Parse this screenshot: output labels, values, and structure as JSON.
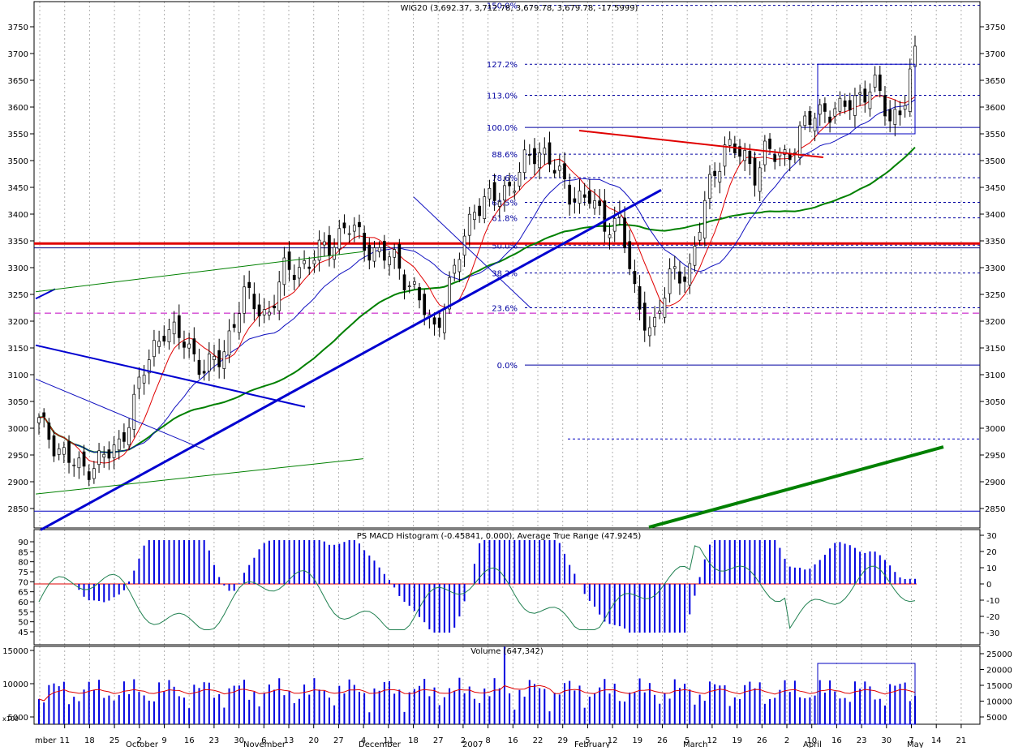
{
  "chart_data": [
    {
      "type": "candlestick",
      "title": "WIG20 (3,692.37, 3,712.78, 3,679.78, 3,679.78, -17.5999)",
      "y_ticks": [
        3750,
        3700,
        3650,
        3600,
        3550,
        3500,
        3450,
        3400,
        3350,
        3300,
        3250,
        3200,
        3150,
        3100,
        3050,
        3000,
        2950,
        2900,
        2850
      ],
      "ylim": [
        2820,
        3790
      ],
      "x_date_labels": [
        "mber",
        "11",
        "18",
        "25",
        "2",
        "9",
        "16",
        "23",
        "30",
        "6",
        "13",
        "20",
        "27",
        "4",
        "11",
        "18",
        "27",
        "2",
        "8",
        "16",
        "22",
        "29",
        "5",
        "12",
        "19",
        "26",
        "5",
        "12",
        "19",
        "26",
        "2",
        "10",
        "16",
        "23",
        "30",
        "7",
        "14",
        "21"
      ],
      "month_labels": [
        "October",
        "November",
        "December",
        "2007",
        "February",
        "March",
        "April",
        "May"
      ],
      "fibonacci_levels": [
        {
          "label": "150.0%",
          "value": 3790
        },
        {
          "label": "127.2%",
          "value": 3680
        },
        {
          "label": "113.0%",
          "value": 3622
        },
        {
          "label": "100.0%",
          "value": 3562
        },
        {
          "label": "88.6%",
          "value": 3512
        },
        {
          "label": "78.6%",
          "value": 3468
        },
        {
          "label": "68.5%",
          "value": 3422
        },
        {
          "label": "61.8%",
          "value": 3393
        },
        {
          "label": "50.0%",
          "value": 3342
        },
        {
          "label": "38.2%",
          "value": 3290
        },
        {
          "label": "23.6%",
          "value": 3225
        },
        {
          "label": "0.0%",
          "value": 3118
        }
      ],
      "horizontal_lines": [
        {
          "name": "resistance-3345",
          "value": 3345,
          "color": "#e00000"
        },
        {
          "name": "level-3337",
          "value": 3337,
          "color": "#000080"
        },
        {
          "name": "level-3215",
          "value": 3215,
          "color": "#c000c0"
        },
        {
          "name": "level-2980",
          "value": 2980,
          "color": "#0000c0"
        },
        {
          "name": "level-2845",
          "value": 2845,
          "color": "#0000c0"
        }
      ],
      "colors": {
        "up": "#ffffff",
        "down": "#000000",
        "ma_short": "#e00000",
        "ma_mid": "#1010c0",
        "ma_long": "#008000",
        "trend": "#0000d0"
      }
    },
    {
      "type": "histogram+line",
      "title": "PS MACD Histogram (-0.45841, 0.000), Average True Range (47.9245)",
      "left_ticks": [
        90,
        85,
        80,
        75,
        70,
        65,
        60,
        55,
        50,
        45
      ],
      "right_ticks": [
        30,
        20,
        10,
        0,
        -10,
        -20,
        -30
      ],
      "colors": {
        "histogram": "#0000e0",
        "zero": "#e00000",
        "atr": "#208050"
      }
    },
    {
      "type": "bar+line",
      "title": "Volume (647,342)",
      "left_ticks": [
        15000,
        10000,
        5000
      ],
      "right_ticks": [
        25000,
        20000,
        15000,
        10000,
        5000
      ],
      "colors": {
        "bars": "#0000e0",
        "line": "#e00000"
      }
    }
  ],
  "misc": {
    "corner_label": "x100"
  }
}
